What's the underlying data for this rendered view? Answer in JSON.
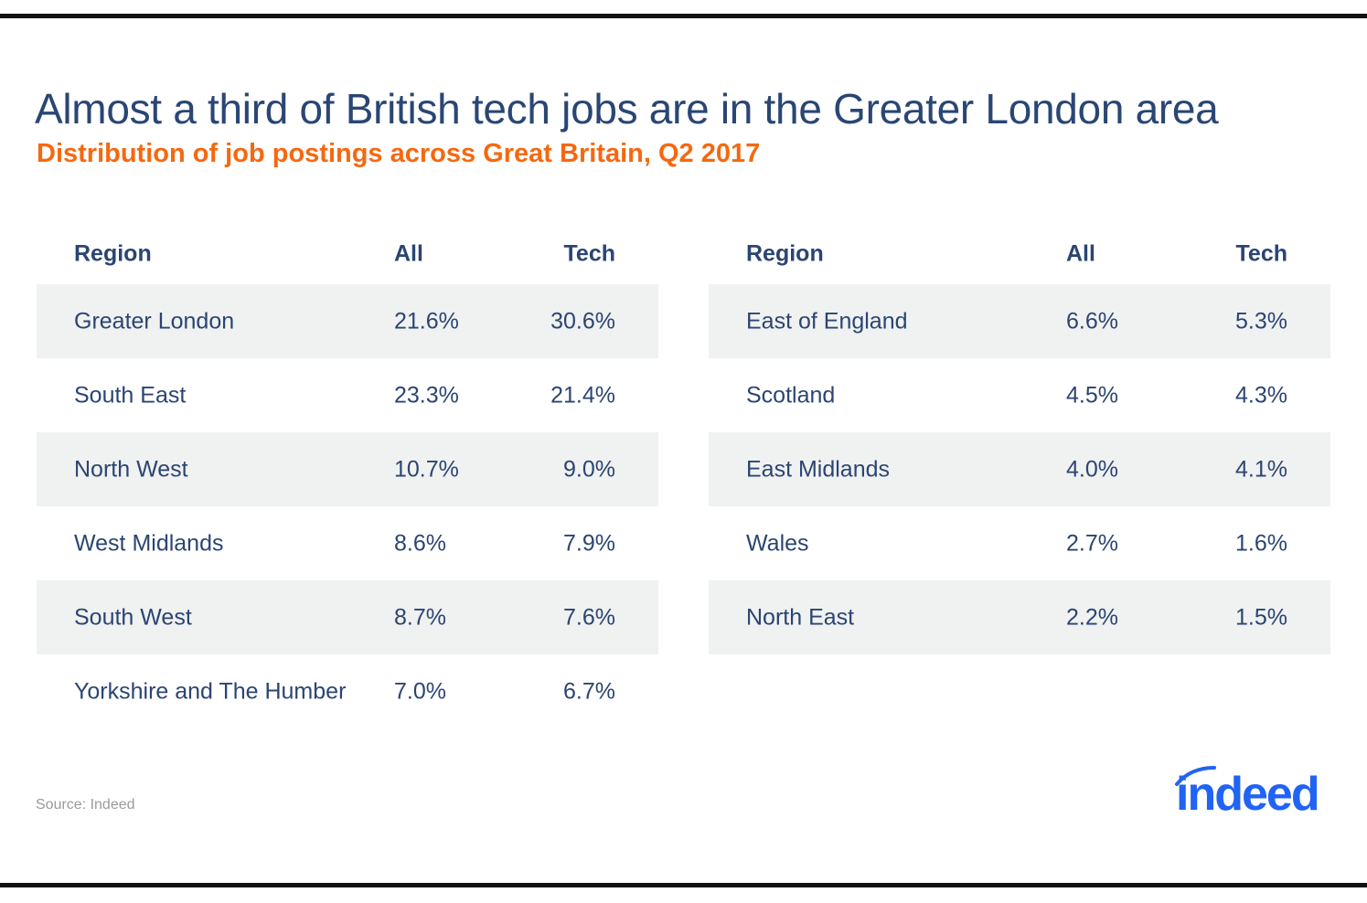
{
  "chart_data": {
    "type": "table",
    "title": "Almost a third of British tech jobs are in the Greater London area",
    "subtitle": "Distribution of job postings across Great Britain, Q2 2017",
    "columns": [
      "Region",
      "All",
      "Tech"
    ],
    "tables": [
      {
        "rows": [
          {
            "region": "Greater London",
            "all": "21.6%",
            "tech": "30.6%"
          },
          {
            "region": "South East",
            "all": "23.3%",
            "tech": "21.4%"
          },
          {
            "region": "North West",
            "all": "10.7%",
            "tech": "9.0%"
          },
          {
            "region": "West Midlands",
            "all": "8.6%",
            "tech": "7.9%"
          },
          {
            "region": "South West",
            "all": "8.7%",
            "tech": "7.6%"
          },
          {
            "region": "Yorkshire and The Humber",
            "all": "7.0%",
            "tech": "6.7%"
          }
        ]
      },
      {
        "rows": [
          {
            "region": "East of England",
            "all": "6.6%",
            "tech": "5.3%"
          },
          {
            "region": "Scotland",
            "all": "4.5%",
            "tech": "4.3%"
          },
          {
            "region": "East Midlands",
            "all": "4.0%",
            "tech": "4.1%"
          },
          {
            "region": "Wales",
            "all": "2.7%",
            "tech": "1.6%"
          },
          {
            "region": "North East",
            "all": "2.2%",
            "tech": "1.5%"
          }
        ]
      }
    ],
    "source": "Source: Indeed"
  },
  "logo": {
    "text": "indeed",
    "color": "#2164f3"
  },
  "colors": {
    "title": "#2a4674",
    "subtitle": "#f6680f",
    "shade": "#f0f1f1"
  }
}
